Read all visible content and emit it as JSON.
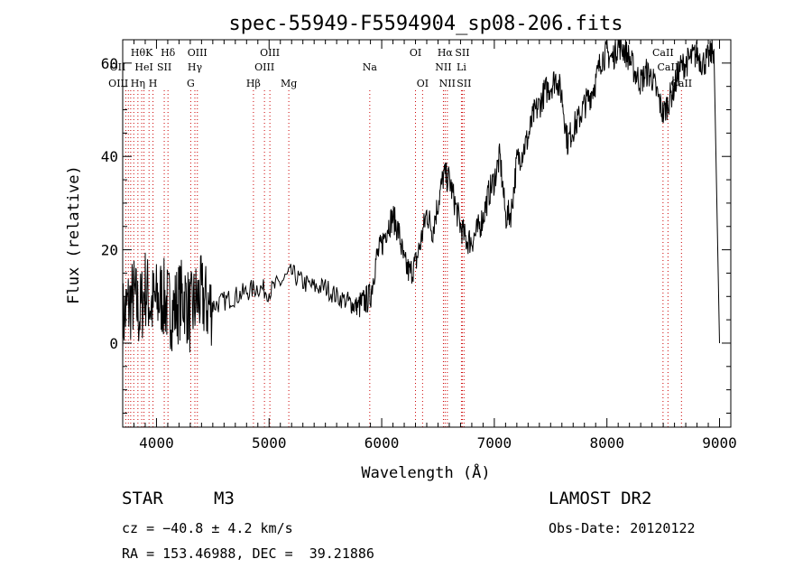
{
  "chart_data": {
    "type": "line",
    "title": "spec-55949-F5594904_sp08-206.fits",
    "xlabel": "Wavelength (Å)",
    "ylabel": "Flux (relative)",
    "xlim": [
      3700,
      9100
    ],
    "ylim": [
      -18,
      65
    ],
    "xticks": [
      4000,
      5000,
      6000,
      7000,
      8000,
      9000
    ],
    "yticks": [
      0,
      20,
      40,
      60
    ],
    "tick_labels_x": [
      "4000",
      "5000",
      "6000",
      "7000",
      "8000",
      "9000"
    ],
    "tick_labels_y": [
      "0",
      "20",
      "40",
      "60"
    ],
    "grid": false,
    "line_color": "#000000",
    "marker_color": "#cc0000",
    "series": [
      {
        "x": [
          3700,
          3750,
          3800,
          3850,
          3900,
          3950,
          4000,
          4050,
          4100,
          4150,
          4200,
          4250,
          4300,
          4350,
          4400,
          4450,
          4500,
          4600,
          4700,
          4800,
          4900,
          5000,
          5100,
          5200,
          5300,
          5400,
          5500,
          5600,
          5700,
          5750,
          5800,
          5850,
          5900,
          5950,
          6000,
          6050,
          6100,
          6150,
          6200,
          6250,
          6300,
          6350,
          6400,
          6450,
          6500,
          6550,
          6600,
          6650,
          6700,
          6750,
          6800,
          6850,
          6900,
          6950,
          7000,
          7050,
          7100,
          7150,
          7200,
          7250,
          7300,
          7350,
          7400,
          7450,
          7500,
          7550,
          7600,
          7650,
          7700,
          7750,
          7800,
          7850,
          7900,
          7950,
          8000,
          8050,
          8100,
          8150,
          8200,
          8250,
          8300,
          8350,
          8400,
          8450,
          8500,
          8550,
          8600,
          8650,
          8700,
          8750,
          8800,
          8850,
          8900,
          8950,
          9000
        ],
        "values": [
          5,
          8,
          10,
          6,
          12,
          8,
          9,
          10,
          8,
          7,
          9,
          10,
          6,
          9,
          10,
          8,
          8,
          9,
          10,
          11,
          12,
          11,
          13,
          15,
          13,
          12,
          12,
          10,
          9,
          8,
          8,
          9,
          10,
          18,
          21,
          25,
          27,
          24,
          17,
          15,
          17,
          22,
          28,
          24,
          30,
          36,
          35,
          30,
          25,
          22,
          22,
          24,
          27,
          32,
          35,
          40,
          27,
          28,
          39,
          41,
          44,
          49,
          51,
          54,
          55,
          57,
          53,
          43,
          46,
          48,
          51,
          53,
          56,
          61,
          62,
          61,
          64,
          63,
          61,
          58,
          56,
          58,
          57,
          53,
          49,
          52,
          55,
          59,
          60,
          61,
          62,
          60,
          61,
          63,
          0
        ]
      }
    ],
    "line_markers": [
      {
        "wl": 3727,
        "label": "OII",
        "row": 1,
        "anchor": "end"
      },
      {
        "wl": 3750,
        "label": "OIII",
        "row": 2,
        "anchor": "end"
      },
      {
        "wl": 3771,
        "label": "Hθ",
        "row": 0,
        "anchor": "start"
      },
      {
        "wl": 3798,
        "label": "",
        "row": -1,
        "anchor": "start"
      },
      {
        "wl": 3835,
        "label": "Hη",
        "row": 2,
        "anchor": "middle"
      },
      {
        "wl": 3869,
        "label": "",
        "row": -1,
        "anchor": "start"
      },
      {
        "wl": 3889,
        "label": "HeI",
        "row": 1,
        "anchor": "middle"
      },
      {
        "wl": 3934,
        "label": "K",
        "row": 0,
        "anchor": "middle"
      },
      {
        "wl": 3969,
        "label": "H",
        "row": 2,
        "anchor": "middle"
      },
      {
        "wl": 4069,
        "label": "SII",
        "row": 1,
        "anchor": "middle"
      },
      {
        "wl": 4102,
        "label": "Hδ",
        "row": 0,
        "anchor": "middle"
      },
      {
        "wl": 4304,
        "label": "G",
        "row": 2,
        "anchor": "middle"
      },
      {
        "wl": 4341,
        "label": "Hγ",
        "row": 1,
        "anchor": "middle"
      },
      {
        "wl": 4363,
        "label": "OIII",
        "row": 0,
        "anchor": "middle"
      },
      {
        "wl": 4861,
        "label": "Hβ",
        "row": 2,
        "anchor": "middle"
      },
      {
        "wl": 4959,
        "label": "OIII",
        "row": 1,
        "anchor": "middle"
      },
      {
        "wl": 5007,
        "label": "OIII",
        "row": 0,
        "anchor": "middle"
      },
      {
        "wl": 5175,
        "label": "Mg",
        "row": 2,
        "anchor": "middle"
      },
      {
        "wl": 5894,
        "label": "Na",
        "row": 1,
        "anchor": "middle"
      },
      {
        "wl": 6300,
        "label": "OI",
        "row": 0,
        "anchor": "middle"
      },
      {
        "wl": 6363,
        "label": "OI",
        "row": 2,
        "anchor": "middle"
      },
      {
        "wl": 6548,
        "label": "NII",
        "row": 1,
        "anchor": "middle"
      },
      {
        "wl": 6563,
        "label": "Hα",
        "row": 0,
        "anchor": "middle"
      },
      {
        "wl": 6583,
        "label": "NII",
        "row": 2,
        "anchor": "middle"
      },
      {
        "wl": 6708,
        "label": "Li",
        "row": 1,
        "anchor": "middle"
      },
      {
        "wl": 6716,
        "label": "SII",
        "row": 0,
        "anchor": "middle"
      },
      {
        "wl": 6731,
        "label": "SII",
        "row": 2,
        "anchor": "middle"
      },
      {
        "wl": 8498,
        "label": "CaII",
        "row": 0,
        "anchor": "middle"
      },
      {
        "wl": 8542,
        "label": "CaII",
        "row": 1,
        "anchor": "middle"
      },
      {
        "wl": 8662,
        "label": "CaII",
        "row": 2,
        "anchor": "middle"
      }
    ]
  },
  "info": {
    "class": "STAR",
    "subclass": "M3",
    "survey": "LAMOST DR2",
    "cz": "cz = −40.8 ± 4.2 km/s",
    "obs_date": "Obs-Date: 20120122",
    "radec": "RA = 153.46988, DEC =  39.21886"
  }
}
